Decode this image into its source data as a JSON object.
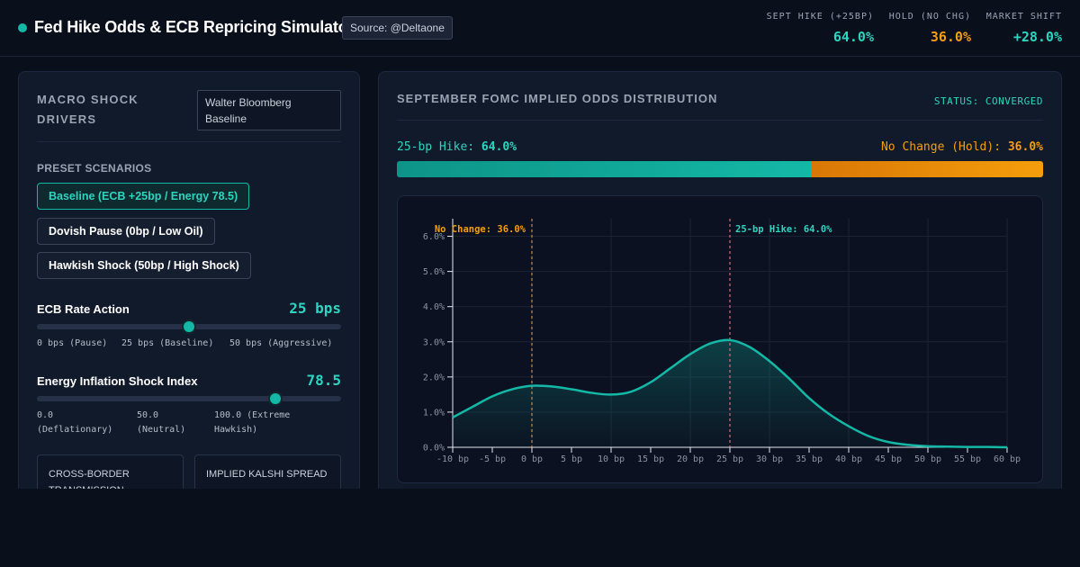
{
  "header": {
    "title": "Fed Hike Odds & ECB Repricing Simulator",
    "source": "Source: @Deltaone",
    "stats": [
      {
        "label": "SEPT HIKE (+25BP)",
        "value": "64.0%",
        "color": "#2dd4bf"
      },
      {
        "label": "HOLD (NO CHG)",
        "value": "36.0%",
        "color": "#f59e0b"
      },
      {
        "label": "MARKET SHIFT",
        "value": "+28.0%",
        "color": "#2dd4bf"
      }
    ]
  },
  "left_panel": {
    "title": "MACRO SHOCK DRIVERS",
    "model_select": "Walter Bloomberg Baseline",
    "presets_title": "PRESET SCENARIOS",
    "presets": [
      {
        "label": "Baseline (ECB +25bp / Energy 78.5)",
        "active": true
      },
      {
        "label": "Dovish Pause (0bp / Low Oil)",
        "active": false
      },
      {
        "label": "Hawkish Shock (50bp / High Shock)",
        "active": false
      }
    ],
    "ecb_slider": {
      "label": "ECB Rate Action",
      "value_text": "25 bps",
      "value": 25,
      "min": 0,
      "max": 50,
      "ticks": [
        "0 bps (Pause)",
        "25 bps (Baseline)",
        "50 bps (Aggressive)"
      ]
    },
    "energy_slider": {
      "label": "Energy Inflation Shock Index",
      "value_text": "78.5",
      "value": 78.5,
      "min": 0,
      "max": 100,
      "ticks": [
        "0.0 (Deflationary)",
        "50.0 (Neutral)",
        "100.0 (Extreme Hawkish)"
      ]
    },
    "cards": [
      "CROSS-BORDER TRANSMISSION",
      "IMPLIED KALSHI SPREAD"
    ]
  },
  "right_panel": {
    "title": "SEPTEMBER FOMC IMPLIED ODDS DISTRIBUTION",
    "status": "STATUS: CONVERGED",
    "hike_label": "25-bp Hike:",
    "hike_value": "64.0%",
    "hold_label": "No Change (Hold):",
    "hold_value": "36.0%",
    "hike_share": 0.64,
    "colors": {
      "hike": "#14b8a6",
      "hold": "#f59e0b"
    }
  },
  "chart_data": {
    "type": "area",
    "title": "",
    "xlabel": "",
    "ylabel": "",
    "x_unit": "bp",
    "x_ticks": [
      -10,
      -5,
      0,
      5,
      10,
      15,
      20,
      25,
      30,
      35,
      40,
      45,
      50,
      55,
      60
    ],
    "y_ticks": [
      0,
      1,
      2,
      3,
      4,
      5,
      6
    ],
    "xlim": [
      -10,
      60
    ],
    "ylim": [
      0,
      6.5
    ],
    "grid": true,
    "series": [
      {
        "x": [
          -10,
          -7.5,
          -5,
          -2.5,
          0,
          2.5,
          5,
          7.5,
          10,
          12.5,
          15,
          17.5,
          20,
          22.5,
          25,
          27.5,
          30,
          32.5,
          35,
          37.5,
          40,
          42.5,
          45,
          47.5,
          50,
          52.5,
          55,
          57.5,
          60
        ],
        "y": [
          0.85,
          1.15,
          1.45,
          1.65,
          1.75,
          1.73,
          1.65,
          1.55,
          1.5,
          1.58,
          1.85,
          2.25,
          2.65,
          2.95,
          3.05,
          2.85,
          2.45,
          1.95,
          1.4,
          0.95,
          0.6,
          0.32,
          0.15,
          0.07,
          0.03,
          0.02,
          0.01,
          0.01,
          0.0
        ]
      }
    ],
    "annotations": [
      {
        "x": 0,
        "text": "No Change: 36.0%",
        "color": "#f59e0b"
      },
      {
        "x": 25,
        "text": "25-bp Hike: 64.0%",
        "color": "#2dd4bf"
      }
    ],
    "line_color": "#14b8a6"
  }
}
